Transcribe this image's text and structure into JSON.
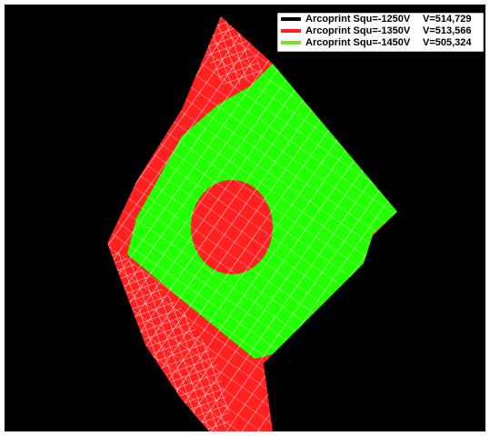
{
  "legend": [
    {
      "label": "Arcoprint Squ=-1250V",
      "value": "V=514,729",
      "color": "#000000"
    },
    {
      "label": "Arcoprint Squ=-1350V",
      "value": "V=513,566",
      "color": "#ff2020"
    },
    {
      "label": "Arcoprint Squ=-1450V",
      "value": "V=505,324",
      "color": "#7ee02a"
    }
  ]
}
